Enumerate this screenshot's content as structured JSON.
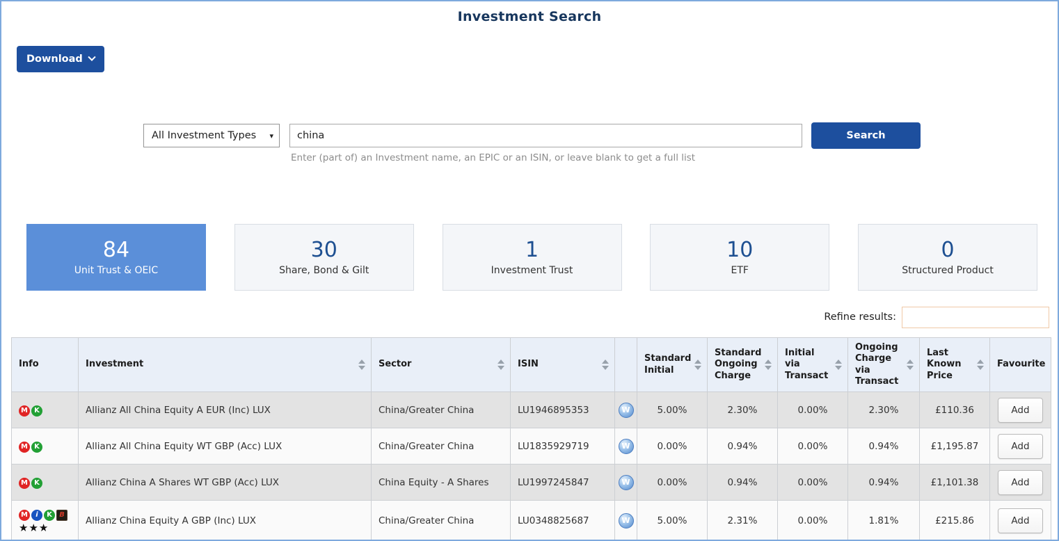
{
  "page": {
    "title": "Investment Search"
  },
  "toolbar": {
    "download_label": "Download"
  },
  "search": {
    "type_select": "All Investment Types",
    "query_value": "china",
    "hint": "Enter (part of) an Investment name, an EPIC or an ISIN, or leave blank to get a full list",
    "search_label": "Search"
  },
  "tiles": [
    {
      "count": "84",
      "label": "Unit Trust & OEIC",
      "selected": true
    },
    {
      "count": "30",
      "label": "Share, Bond & Gilt",
      "selected": false
    },
    {
      "count": "1",
      "label": "Investment Trust",
      "selected": false
    },
    {
      "count": "10",
      "label": "ETF",
      "selected": false
    },
    {
      "count": "0",
      "label": "Structured Product",
      "selected": false
    }
  ],
  "refine": {
    "label": "Refine results:",
    "value": ""
  },
  "icons": {
    "m": {
      "glyph": "M",
      "name": "badge-m-icon"
    },
    "i": {
      "glyph": "i",
      "name": "badge-i-icon"
    },
    "k": {
      "glyph": "K",
      "name": "badge-k-icon"
    },
    "b": {
      "glyph": "B",
      "name": "badge-b-icon"
    },
    "w": {
      "glyph": "W",
      "name": "w-icon"
    }
  },
  "colors": {
    "accent_blue": "#1d4f9e",
    "selected_tile": "#5b8fd9",
    "tile_number": "#1d4f91",
    "header_bg": "#e9eff8",
    "row_stripe": "#e3e3e3",
    "page_border": "#7ea9dd",
    "refine_border": "#f0c9a6"
  },
  "table": {
    "columns": [
      {
        "label": "Info",
        "sortable": false
      },
      {
        "label": "Investment",
        "sortable": true
      },
      {
        "label": "Sector",
        "sortable": true
      },
      {
        "label": "ISIN",
        "sortable": true
      },
      {
        "label": "",
        "sortable": false
      },
      {
        "label": "Standard Initial",
        "sortable": true
      },
      {
        "label": "Standard Ongoing Charge",
        "sortable": true
      },
      {
        "label": "Initial via Transact",
        "sortable": true
      },
      {
        "label": "Ongoing Charge via Transact",
        "sortable": true
      },
      {
        "label": "Last Known Price",
        "sortable": true
      },
      {
        "label": "Favourite",
        "sortable": false
      }
    ],
    "rows": [
      {
        "info_icons": [
          "m",
          "k"
        ],
        "stars": "",
        "investment": "Allianz All China Equity A EUR (Inc) LUX",
        "sector": "China/Greater China",
        "isin": "LU1946895353",
        "w": true,
        "standard_initial": "5.00%",
        "standard_ongoing": "2.30%",
        "initial_via_transact": "0.00%",
        "ongoing_via_transact": "2.30%",
        "last_known_price": "£110.36",
        "favourite_label": "Add"
      },
      {
        "info_icons": [
          "m",
          "k"
        ],
        "stars": "",
        "investment": "Allianz All China Equity WT GBP (Acc) LUX",
        "sector": "China/Greater China",
        "isin": "LU1835929719",
        "w": true,
        "standard_initial": "0.00%",
        "standard_ongoing": "0.94%",
        "initial_via_transact": "0.00%",
        "ongoing_via_transact": "0.94%",
        "last_known_price": "£1,195.87",
        "favourite_label": "Add"
      },
      {
        "info_icons": [
          "m",
          "k"
        ],
        "stars": "",
        "investment": "Allianz China A Shares WT GBP (Acc) LUX",
        "sector": "China Equity - A Shares",
        "isin": "LU1997245847",
        "w": true,
        "standard_initial": "0.00%",
        "standard_ongoing": "0.94%",
        "initial_via_transact": "0.00%",
        "ongoing_via_transact": "0.94%",
        "last_known_price": "£1,101.38",
        "favourite_label": "Add"
      },
      {
        "info_icons": [
          "m",
          "i",
          "k",
          "b"
        ],
        "stars": "★★★",
        "investment": "Allianz China Equity A GBP (Inc) LUX",
        "sector": "China/Greater China",
        "isin": "LU0348825687",
        "w": true,
        "standard_initial": "5.00%",
        "standard_ongoing": "2.31%",
        "initial_via_transact": "0.00%",
        "ongoing_via_transact": "1.81%",
        "last_known_price": "£215.86",
        "favourite_label": "Add"
      }
    ]
  }
}
